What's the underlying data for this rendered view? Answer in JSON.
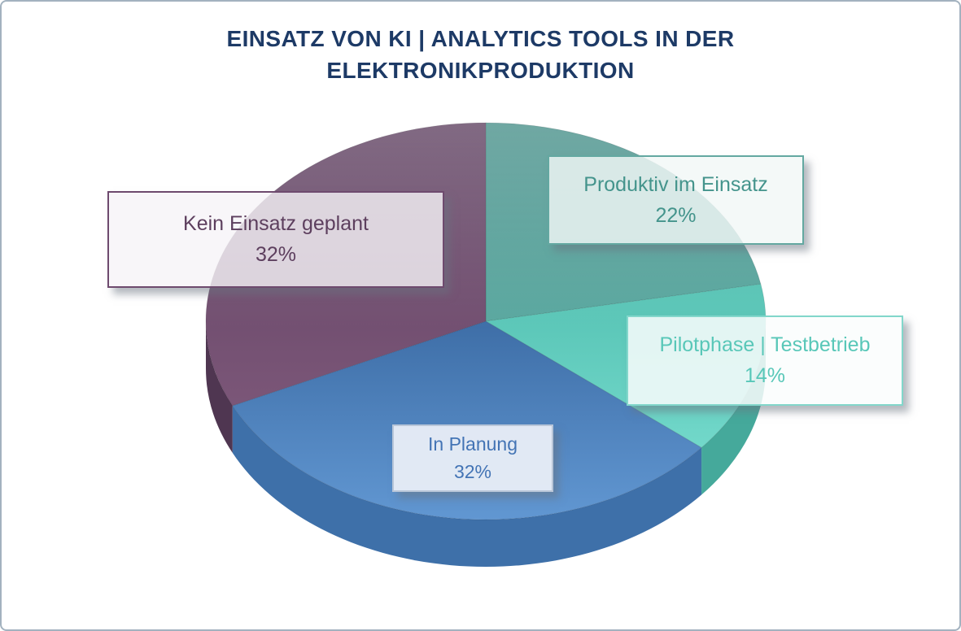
{
  "frame": {
    "border_color": "#a3b2bf",
    "background": "#ffffff"
  },
  "title": {
    "line1": "EINSATZ VON KI | ANALYTICS TOOLS IN DER",
    "line2": "ELEKTRONIKPRODUKTION",
    "color": "#1d3a66"
  },
  "chart_data": {
    "type": "pie",
    "style": "3d",
    "start_angle_deg": 0,
    "direction": "clockwise",
    "unit": "%",
    "title": "EINSATZ VON KI | ANALYTICS TOOLS IN DER ELEKTRONIKPRODUKTION",
    "slices": [
      {
        "label": "Produktiv im Einsatz",
        "value": 22,
        "pct": "22%",
        "color_top_dark": "#478f89",
        "color_top_light": "#5aa8a0",
        "color_side": "#3b7a74",
        "label_text_color": "#44948c",
        "box_border_color": "#63a8a1",
        "box_bg": "rgba(242,248,247,0.82)"
      },
      {
        "label": "Pilotphase | Testbetrieb",
        "value": 14,
        "pct": "14%",
        "color_top_dark": "#55c2b3",
        "color_top_light": "#72d8ca",
        "color_side": "#45a99b",
        "label_text_color": "#58c7b8",
        "box_border_color": "#82d7cb",
        "box_bg": "rgba(250,253,253,0.85)"
      },
      {
        "label": "In Planung",
        "value": 32,
        "pct": "32%",
        "color_top_dark": "#3e6ea7",
        "color_top_light": "#6197d2",
        "color_side": "#3e70a9",
        "label_text_color": "#4374b5",
        "box_border_color": "#b9c6d8",
        "box_bg": "rgba(236,240,247,0.93)"
      },
      {
        "label": "Kein Einsatz geplant",
        "value": 32,
        "pct": "32%",
        "color_top_dark": "#5e4060",
        "color_top_light": "#7b5678",
        "color_side": "#4f3651",
        "label_text_color": "#5d3f5e",
        "box_border_color": "#6e4a6e",
        "box_bg": "rgba(246,244,247,0.80)"
      }
    ]
  }
}
